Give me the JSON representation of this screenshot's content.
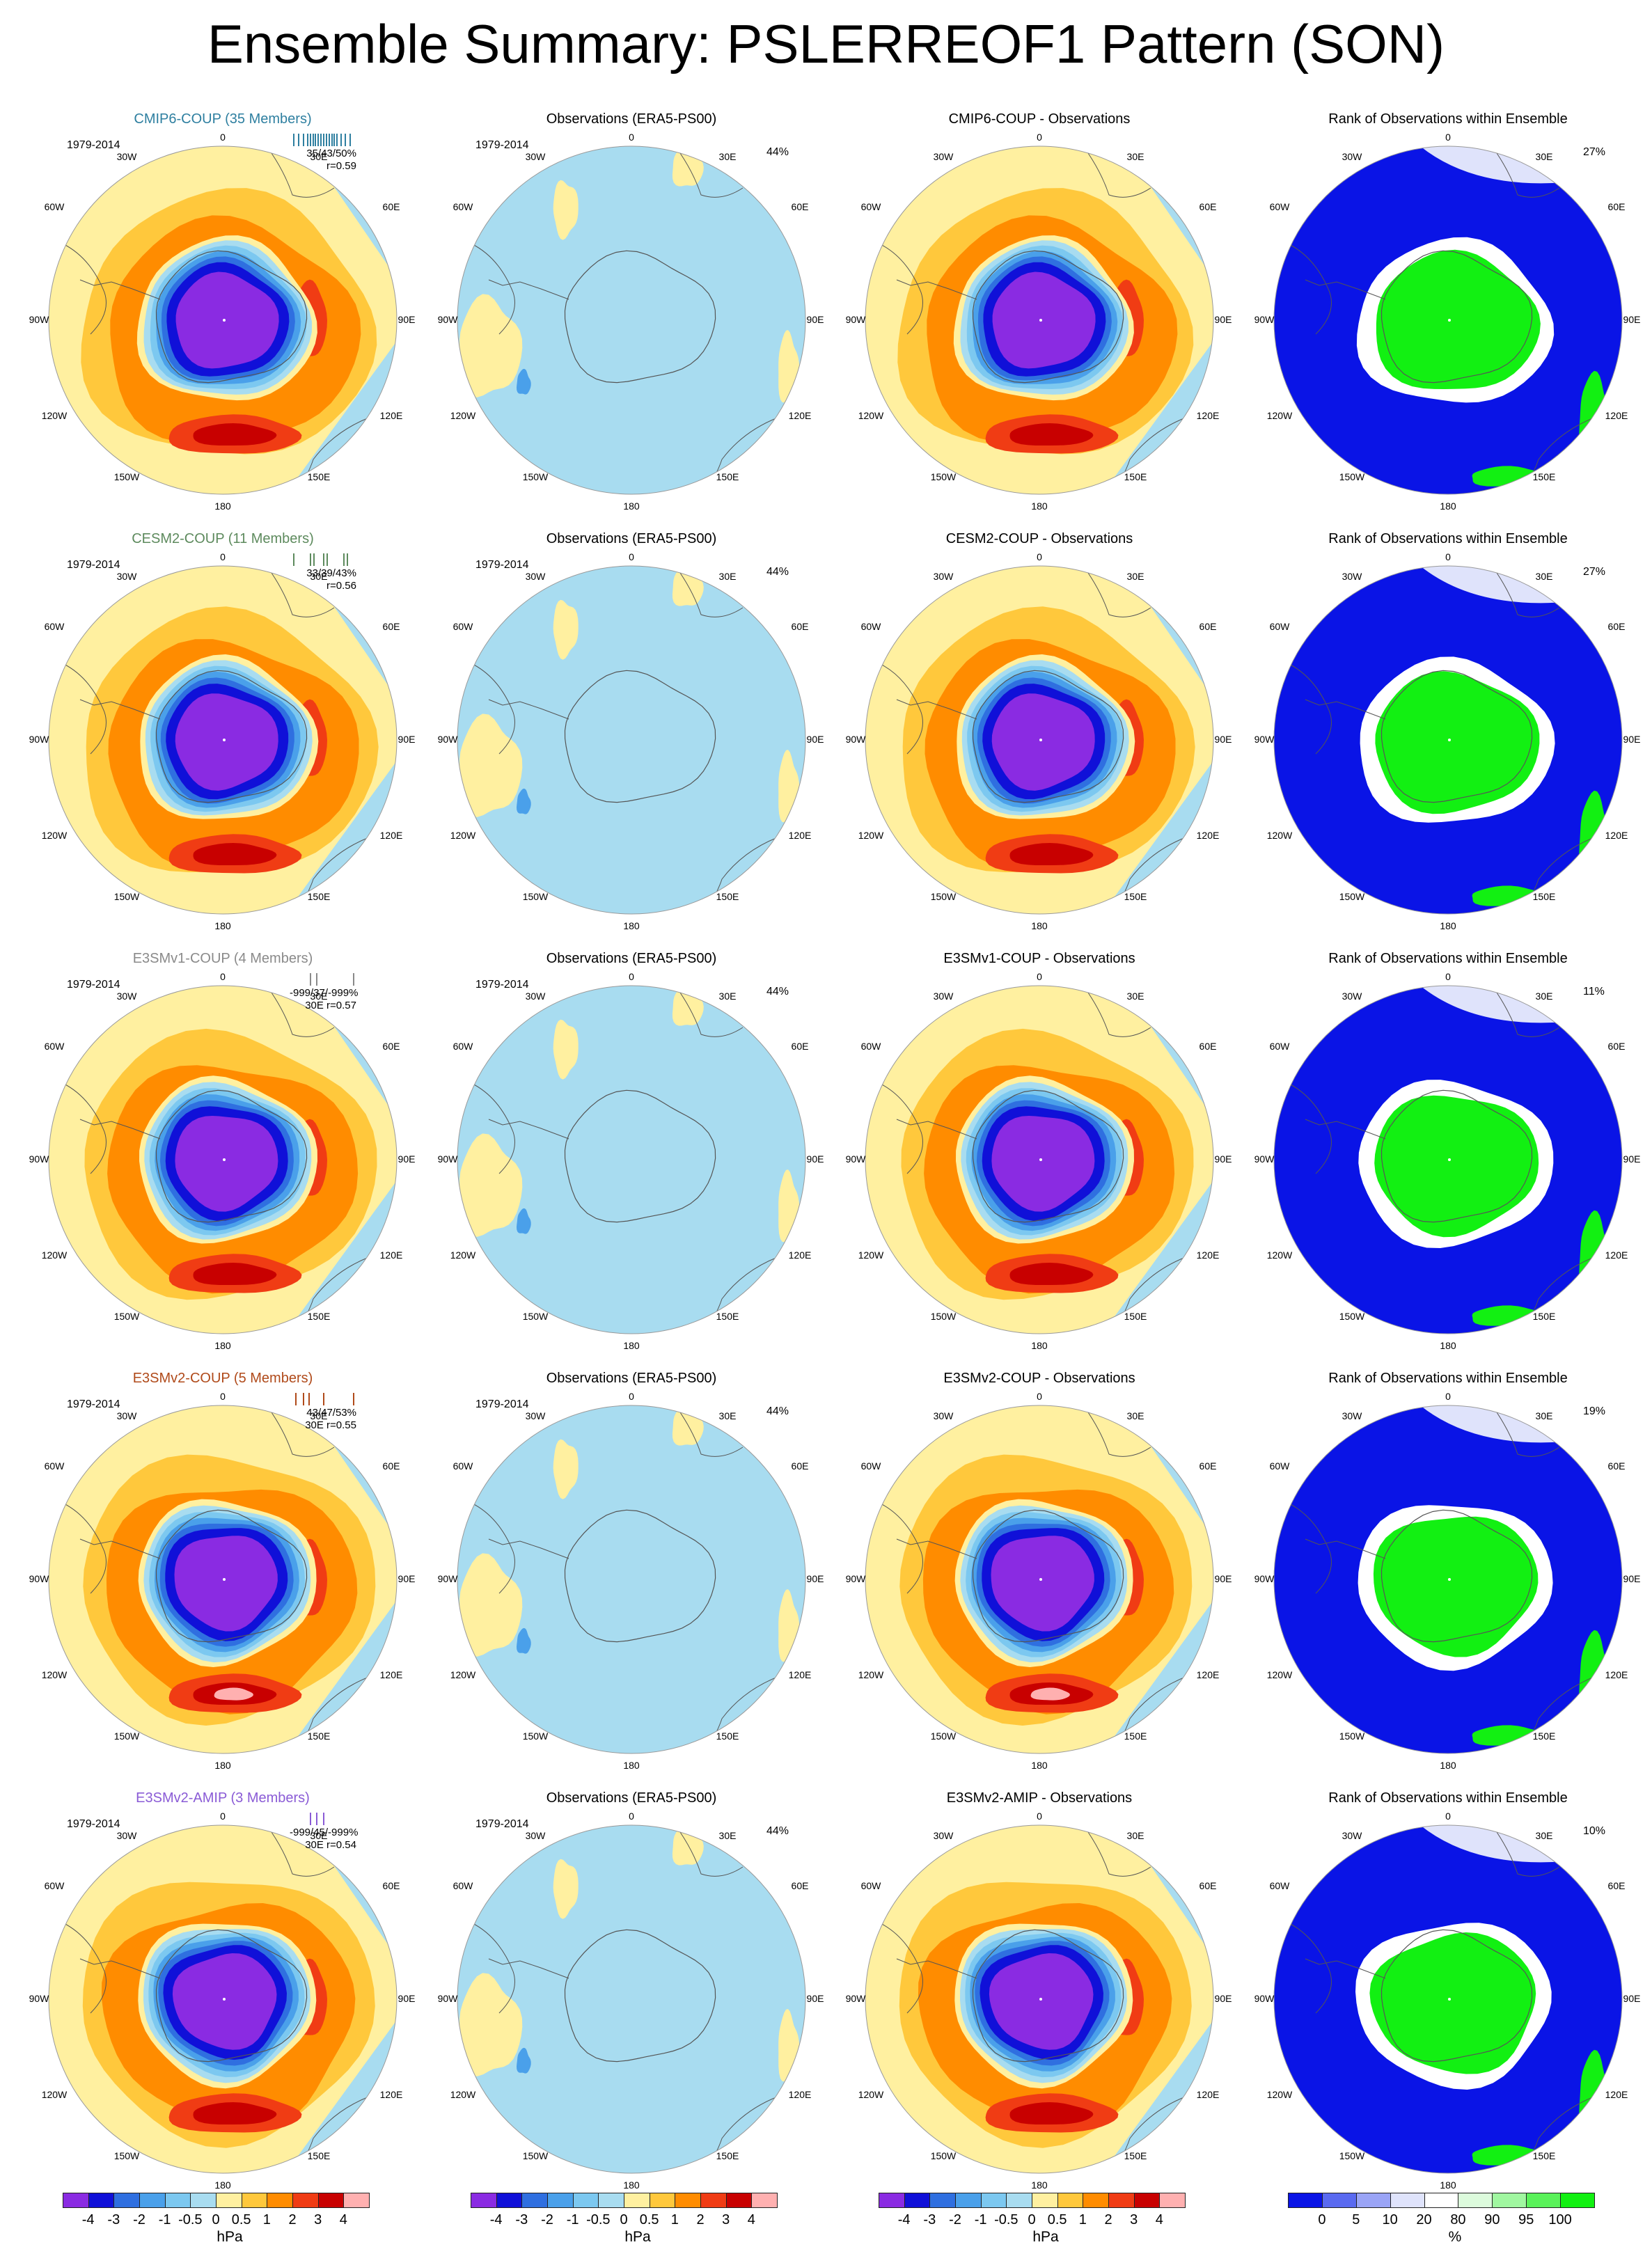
{
  "title": "Ensemble Summary: PSLERREOF1 Pattern (SON)",
  "lon_labels": {
    "top": "0",
    "n30e": "30E",
    "n60e": "60E",
    "e90": "90E",
    "s120e": "120E",
    "s150e": "150E",
    "bottom": "180",
    "s150w": "150W",
    "s120w": "120W",
    "w90": "90W",
    "n60w": "60W",
    "n30w": "30W"
  },
  "rows": [
    {
      "model": {
        "title": "CMIP6-COUP (35 Members)",
        "title_color": "#2e7fa0",
        "period": "1979-2014",
        "stats1": "35/43/50%",
        "stats2": "r=0.59",
        "tick_color": "#2e7fa0",
        "ticks": [
          0.05,
          0.12,
          0.2,
          0.26,
          0.3,
          0.34,
          0.38,
          0.42,
          0.46,
          0.5,
          0.54,
          0.58,
          0.62,
          0.66,
          0.7,
          0.76,
          0.82,
          0.9
        ]
      },
      "obs": {
        "title": "Observations (ERA5-PS00)",
        "period": "1979-2014",
        "pct": "44%"
      },
      "diff": {
        "title": "CMIP6-COUP - Observations"
      },
      "rank": {
        "title": "Rank of Observations within Ensemble",
        "pct": "27%"
      }
    },
    {
      "model": {
        "title": "CESM2-COUP (11 Members)",
        "title_color": "#5d8a5d",
        "period": "1979-2014",
        "stats1": "33/39/43%",
        "stats2": "r=0.56",
        "tick_color": "#5d8a5d",
        "ticks": [
          0.05,
          0.3,
          0.35,
          0.5,
          0.55,
          0.8,
          0.85
        ]
      },
      "obs": {
        "title": "Observations (ERA5-PS00)",
        "period": "1979-2014",
        "pct": "44%"
      },
      "diff": {
        "title": "CESM2-COUP - Observations"
      },
      "rank": {
        "title": "Rank of Observations within Ensemble",
        "pct": "27%"
      }
    },
    {
      "model": {
        "title": "E3SMv1-COUP (4 Members)",
        "title_color": "#8a8a8a",
        "period": "1979-2014",
        "stats1": "-999/37/-999%",
        "stats2": "30E r=0.57",
        "tick_color": "#8a8a8a",
        "ticks": [
          0.3,
          0.4,
          0.95
        ]
      },
      "obs": {
        "title": "Observations (ERA5-PS00)",
        "period": "1979-2014",
        "pct": "44%"
      },
      "diff": {
        "title": "E3SMv1-COUP - Observations"
      },
      "rank": {
        "title": "Rank of Observations within Ensemble",
        "pct": "11%"
      }
    },
    {
      "model": {
        "title": "E3SMv2-COUP (5 Members)",
        "title_color": "#b04a1a",
        "period": "1979-2014",
        "stats1": "43/47/53%",
        "stats2": "30E r=0.55",
        "tick_color": "#b04a1a",
        "ticks": [
          0.08,
          0.2,
          0.28,
          0.5,
          0.95
        ]
      },
      "obs": {
        "title": "Observations (ERA5-PS00)",
        "period": "1979-2014",
        "pct": "44%"
      },
      "diff": {
        "title": "E3SMv2-COUP - Observations"
      },
      "rank": {
        "title": "Rank of Observations within Ensemble",
        "pct": "19%"
      }
    },
    {
      "model": {
        "title": "E3SMv2-AMIP (3 Members)",
        "title_color": "#8a5bd6",
        "period": "1979-2014",
        "stats1": "-999/45/-999%",
        "stats2": "30E r=0.54",
        "tick_color": "#8a5bd6",
        "ticks": [
          0.3,
          0.4,
          0.5
        ]
      },
      "obs": {
        "title": "Observations (ERA5-PS00)",
        "period": "1979-2014",
        "pct": "44%"
      },
      "diff": {
        "title": "E3SMv2-AMIP - Observations"
      },
      "rank": {
        "title": "Rank of Observations within Ensemble",
        "pct": "10%"
      }
    }
  ],
  "chart_data": [
    {
      "type": "heatmap",
      "title": "Ensemble Summary: PSLERREOF1 Pattern (SON)",
      "projection": "polar stereographic, Southern Hemisphere",
      "colorbar_label": "hPa",
      "levels": [
        "-4",
        "-3",
        "-2",
        "-1",
        "-0.5",
        "0",
        "0.5",
        "1",
        "2",
        "3",
        "4"
      ],
      "colors": [
        "#8a2be2",
        "#1010d8",
        "#2f6fe0",
        "#4aa0ea",
        "#7cc8f0",
        "#a8dcf0",
        "#fff0a0",
        "#ffc83c",
        "#ff8c00",
        "#f03c14",
        "#c80000",
        "#ffb0b0"
      ]
    },
    {
      "type": "heatmap",
      "title": "Rank of Observations within Ensemble",
      "colorbar_label": "%",
      "levels": [
        "0",
        "5",
        "10",
        "20",
        "80",
        "90",
        "95",
        "100"
      ],
      "colors": [
        "#0a14e6",
        "#5a6af0",
        "#9aa4f6",
        "#dfe3fb",
        "#ffffff",
        "#dcfbdc",
        "#a0f7a0",
        "#5af25a",
        "#12f012"
      ]
    }
  ],
  "colorbars": [
    {
      "labels": [
        "-4",
        "-3",
        "-2",
        "-1",
        "-0.5",
        "0",
        "0.5",
        "1",
        "2",
        "3",
        "4"
      ],
      "unit": "hPa"
    },
    {
      "labels": [
        "-4",
        "-3",
        "-2",
        "-1",
        "-0.5",
        "0",
        "0.5",
        "1",
        "2",
        "3",
        "4"
      ],
      "unit": "hPa"
    },
    {
      "labels": [
        "-4",
        "-3",
        "-2",
        "-1",
        "-0.5",
        "0",
        "0.5",
        "1",
        "2",
        "3",
        "4"
      ],
      "unit": "hPa"
    },
    {
      "labels": [
        "0",
        "5",
        "10",
        "20",
        "80",
        "90",
        "95",
        "100"
      ],
      "unit": "%"
    }
  ]
}
